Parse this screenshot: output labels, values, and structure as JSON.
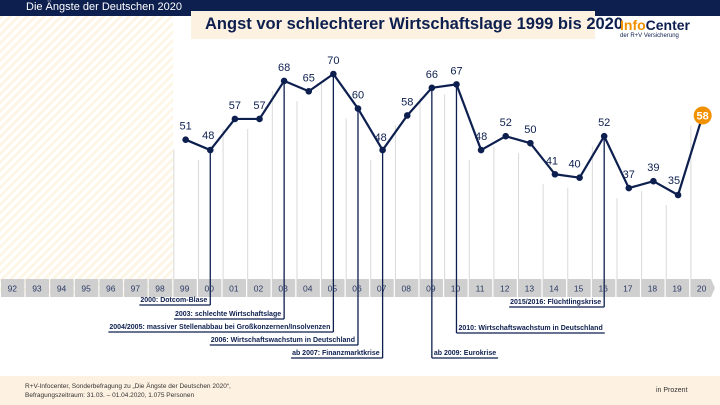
{
  "header": {
    "section_title": "Die Ängste der Deutschen 2020"
  },
  "logo": {
    "info": "Info",
    "center": "Center",
    "sub": "der R+V Versicherung"
  },
  "colors": {
    "navy": "#0d1f4f",
    "orange": "#f29100",
    "axis_gray": "#cccccc"
  },
  "chart_data": {
    "type": "line",
    "title": "Angst vor schlechterer Wirtschaftslage 1999 bis 2020",
    "unit": "in Prozent",
    "axis_labels": [
      "92",
      "93",
      "94",
      "95",
      "96",
      "97",
      "98",
      "99",
      "00",
      "01",
      "02",
      "03",
      "04",
      "05",
      "06",
      "07",
      "08",
      "09",
      "10",
      "11",
      "12",
      "13",
      "14",
      "15",
      "16",
      "17",
      "18",
      "19",
      "20"
    ],
    "x": [
      "99",
      "00",
      "01",
      "02",
      "03",
      "04",
      "05",
      "06",
      "07",
      "08",
      "09",
      "10",
      "11",
      "12",
      "13",
      "14",
      "15",
      "16",
      "17",
      "18",
      "19",
      "20"
    ],
    "values": [
      51,
      48,
      57,
      57,
      68,
      65,
      70,
      60,
      48,
      58,
      66,
      67,
      48,
      52,
      50,
      41,
      40,
      52,
      37,
      39,
      35,
      58
    ],
    "highlight_last": true,
    "annotations": [
      {
        "year": "00",
        "text": "2000: Dotcom-Blase"
      },
      {
        "year": "03",
        "text": "2003: schlechte Wirtschaftslage"
      },
      {
        "year": "05",
        "text": "2004/2005: massiver Stellenabbau bei Großkonzernen/Insolvenzen"
      },
      {
        "year": "06",
        "text": "2006: Wirtschaftswachstum in Deutschland"
      },
      {
        "year": "07",
        "text": "ab 2007: Finanzmarktkrise"
      },
      {
        "year": "09",
        "text": "ab 2009: Eurokrise"
      },
      {
        "year": "10",
        "text": "2010: Wirtschaftswachstum in Deutschland"
      },
      {
        "year": "16",
        "text": "2015/2016: Flüchtlingskrise"
      }
    ]
  },
  "footer": {
    "source_line1": "R+V-Infocenter, Sonderbefragung zu „Die Ängste der Deutschen 2020“,",
    "source_line2": "Befragungszeitraum: 31.03. – 01.04.2020, 1.075 Personen",
    "unit": "in Prozent"
  }
}
